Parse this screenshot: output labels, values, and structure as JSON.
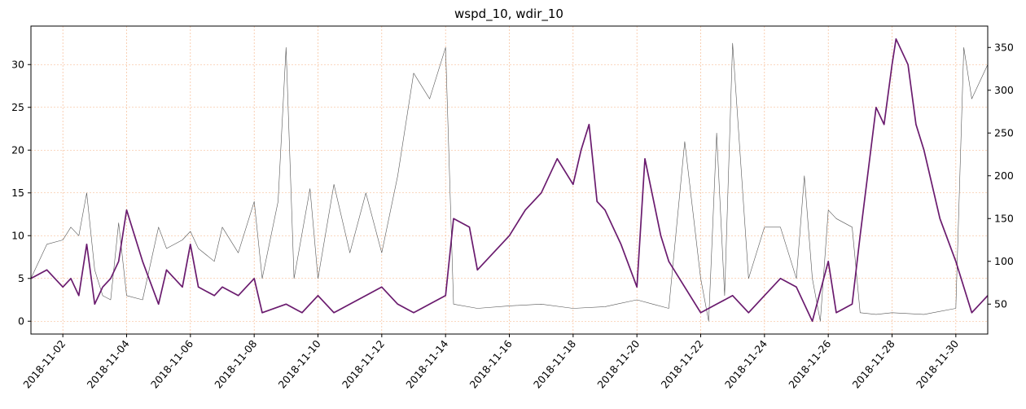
{
  "chart_data": {
    "type": "line",
    "title": "wspd_10, wdir_10",
    "xlabel": "",
    "ylabel": "",
    "grid": true,
    "x_axis": {
      "type": "date",
      "range": [
        "2018-11-01",
        "2018-11-31"
      ],
      "ticks": [
        "2018-11-02",
        "2018-11-04",
        "2018-11-06",
        "2018-11-08",
        "2018-11-10",
        "2018-11-12",
        "2018-11-14",
        "2018-11-16",
        "2018-11-18",
        "2018-11-20",
        "2018-11-22",
        "2018-11-24",
        "2018-11-26",
        "2018-11-28",
        "2018-11-30"
      ]
    },
    "y_left": {
      "ylim": [
        -1.5,
        34.5
      ],
      "ticks": [
        0,
        5,
        10,
        15,
        20,
        25,
        30
      ]
    },
    "y_right": {
      "ylim": [
        15,
        375
      ],
      "ticks": [
        50,
        100,
        150,
        200,
        250,
        300,
        350
      ]
    },
    "series": [
      {
        "axis": "left",
        "color": "#6a1b6e",
        "points": [
          [
            "2018-11-01",
            5
          ],
          [
            "2018-11-01T12:00",
            6
          ],
          [
            "2018-11-02",
            4
          ],
          [
            "2018-11-02T06:00",
            5
          ],
          [
            "2018-11-02T12:00",
            3
          ],
          [
            "2018-11-02T18:00",
            9
          ],
          [
            "2018-11-03",
            2
          ],
          [
            "2018-11-03T06:00",
            4
          ],
          [
            "2018-11-03T12:00",
            5
          ],
          [
            "2018-11-03T18:00",
            7
          ],
          [
            "2018-11-04",
            13
          ],
          [
            "2018-11-04T12:00",
            7
          ],
          [
            "2018-11-05",
            2
          ],
          [
            "2018-11-05T06:00",
            6
          ],
          [
            "2018-11-05T18:00",
            4
          ],
          [
            "2018-11-06",
            9
          ],
          [
            "2018-11-06T06:00",
            4
          ],
          [
            "2018-11-06T18:00",
            3
          ],
          [
            "2018-11-07",
            4
          ],
          [
            "2018-11-07T12:00",
            3
          ],
          [
            "2018-11-08",
            5
          ],
          [
            "2018-11-08T06:00",
            1
          ],
          [
            "2018-11-09",
            2
          ],
          [
            "2018-11-09T12:00",
            1
          ],
          [
            "2018-11-10",
            3
          ],
          [
            "2018-11-10T12:00",
            1
          ],
          [
            "2018-11-11",
            2
          ],
          [
            "2018-11-11T12:00",
            3
          ],
          [
            "2018-11-12",
            4
          ],
          [
            "2018-11-12T12:00",
            2
          ],
          [
            "2018-11-13",
            1
          ],
          [
            "2018-11-13T12:00",
            2
          ],
          [
            "2018-11-14",
            3
          ],
          [
            "2018-11-14T06:00",
            12
          ],
          [
            "2018-11-14T18:00",
            11
          ],
          [
            "2018-11-15",
            6
          ],
          [
            "2018-11-15T12:00",
            8
          ],
          [
            "2018-11-16",
            10
          ],
          [
            "2018-11-16T12:00",
            13
          ],
          [
            "2018-11-17",
            15
          ],
          [
            "2018-11-17T12:00",
            19
          ],
          [
            "2018-11-18",
            16
          ],
          [
            "2018-11-18T06:00",
            20
          ],
          [
            "2018-11-18T12:00",
            23
          ],
          [
            "2018-11-18T18:00",
            14
          ],
          [
            "2018-11-19",
            13
          ],
          [
            "2018-11-19T12:00",
            9
          ],
          [
            "2018-11-20",
            4
          ],
          [
            "2018-11-20T06:00",
            19
          ],
          [
            "2018-11-20T18:00",
            10
          ],
          [
            "2018-11-21",
            7
          ],
          [
            "2018-11-21T12:00",
            4
          ],
          [
            "2018-11-22",
            1
          ],
          [
            "2018-11-22T12:00",
            2
          ],
          [
            "2018-11-23",
            3
          ],
          [
            "2018-11-23T12:00",
            1
          ],
          [
            "2018-11-24",
            3
          ],
          [
            "2018-11-24T12:00",
            5
          ],
          [
            "2018-11-25",
            4
          ],
          [
            "2018-11-25T12:00",
            0
          ],
          [
            "2018-11-26",
            7
          ],
          [
            "2018-11-26T06:00",
            1
          ],
          [
            "2018-11-26T18:00",
            2
          ],
          [
            "2018-11-27",
            10
          ],
          [
            "2018-11-27T12:00",
            25
          ],
          [
            "2018-11-27T18:00",
            23
          ],
          [
            "2018-11-28",
            30
          ],
          [
            "2018-11-28T03:00",
            33
          ],
          [
            "2018-11-28T12:00",
            30
          ],
          [
            "2018-11-28T18:00",
            23
          ],
          [
            "2018-11-29",
            20
          ],
          [
            "2018-11-29T12:00",
            12
          ],
          [
            "2018-11-30",
            7
          ],
          [
            "2018-11-30T12:00",
            1
          ],
          [
            "2018-11-31",
            3
          ]
        ]
      },
      {
        "axis": "right",
        "color": "#555555",
        "points": [
          [
            "2018-11-01",
            80
          ],
          [
            "2018-11-01T12:00",
            120
          ],
          [
            "2018-11-02",
            125
          ],
          [
            "2018-11-02T06:00",
            140
          ],
          [
            "2018-11-02T12:00",
            130
          ],
          [
            "2018-11-02T18:00",
            180
          ],
          [
            "2018-11-03",
            90
          ],
          [
            "2018-11-03T06:00",
            60
          ],
          [
            "2018-11-03T12:00",
            55
          ],
          [
            "2018-11-03T18:00",
            145
          ],
          [
            "2018-11-04",
            60
          ],
          [
            "2018-11-04T12:00",
            55
          ],
          [
            "2018-11-05",
            140
          ],
          [
            "2018-11-05T06:00",
            115
          ],
          [
            "2018-11-05T18:00",
            125
          ],
          [
            "2018-11-06",
            135
          ],
          [
            "2018-11-06T06:00",
            115
          ],
          [
            "2018-11-06T18:00",
            100
          ],
          [
            "2018-11-07",
            140
          ],
          [
            "2018-11-07T12:00",
            110
          ],
          [
            "2018-11-08",
            170
          ],
          [
            "2018-11-08T06:00",
            80
          ],
          [
            "2018-11-08T18:00",
            170
          ],
          [
            "2018-11-09",
            350
          ],
          [
            "2018-11-09T06:00",
            80
          ],
          [
            "2018-11-09T18:00",
            185
          ],
          [
            "2018-11-10",
            80
          ],
          [
            "2018-11-10T12:00",
            190
          ],
          [
            "2018-11-11",
            110
          ],
          [
            "2018-11-11T12:00",
            180
          ],
          [
            "2018-11-12",
            110
          ],
          [
            "2018-11-12T12:00",
            200
          ],
          [
            "2018-11-13",
            320
          ],
          [
            "2018-11-13T12:00",
            290
          ],
          [
            "2018-11-14",
            350
          ],
          [
            "2018-11-14T06:00",
            50
          ],
          [
            "2018-11-15",
            45
          ],
          [
            "2018-11-16",
            48
          ],
          [
            "2018-11-17",
            50
          ],
          [
            "2018-11-18",
            45
          ],
          [
            "2018-11-19",
            47
          ],
          [
            "2018-11-20",
            55
          ],
          [
            "2018-11-20T12:00",
            50
          ],
          [
            "2018-11-21",
            45
          ],
          [
            "2018-11-21T12:00",
            240
          ],
          [
            "2018-11-22",
            80
          ],
          [
            "2018-11-22T06:00",
            30
          ],
          [
            "2018-11-22T12:00",
            250
          ],
          [
            "2018-11-22T18:00",
            60
          ],
          [
            "2018-11-23",
            355
          ],
          [
            "2018-11-23T12:00",
            80
          ],
          [
            "2018-11-24",
            140
          ],
          [
            "2018-11-24T12:00",
            140
          ],
          [
            "2018-11-25",
            80
          ],
          [
            "2018-11-25T06:00",
            200
          ],
          [
            "2018-11-25T12:00",
            80
          ],
          [
            "2018-11-25T18:00",
            30
          ],
          [
            "2018-11-26",
            160
          ],
          [
            "2018-11-26T06:00",
            150
          ],
          [
            "2018-11-26T18:00",
            140
          ],
          [
            "2018-11-27",
            40
          ],
          [
            "2018-11-27T12:00",
            38
          ],
          [
            "2018-11-28",
            40
          ],
          [
            "2018-11-29",
            38
          ],
          [
            "2018-11-30",
            45
          ],
          [
            "2018-11-30T06:00",
            350
          ],
          [
            "2018-11-30T12:00",
            290
          ],
          [
            "2018-11-31",
            330
          ]
        ]
      }
    ]
  }
}
